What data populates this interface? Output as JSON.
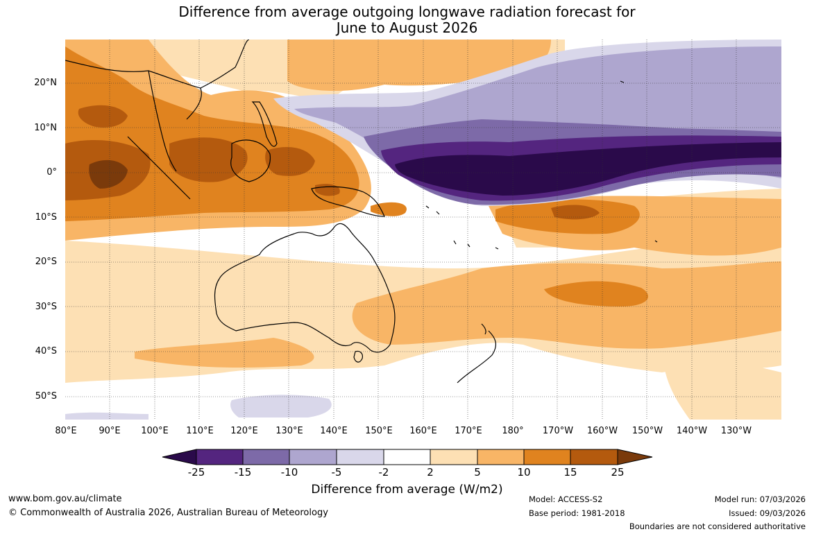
{
  "title": {
    "line1": "Difference from average outgoing longwave radiation forecast for",
    "line2": "June to August 2026"
  },
  "lat_labels": [
    "20°N",
    "10°N",
    "0°",
    "10°S",
    "20°S",
    "30°S",
    "40°S",
    "50°S"
  ],
  "lon_labels": [
    "80°E",
    "90°E",
    "100°E",
    "110°E",
    "120°E",
    "130°E",
    "140°E",
    "150°E",
    "160°E",
    "170°E",
    "180°",
    "170°W",
    "160°W",
    "150°W",
    "140°W",
    "130°W"
  ],
  "colorbar": {
    "ticks": [
      "-25",
      "-15",
      "-10",
      "-5",
      "-2",
      "2",
      "5",
      "10",
      "15",
      "25"
    ],
    "colors": {
      "lt_neg25": "#2a0a4a",
      "neg25_neg15": "#54257f",
      "neg15_neg10": "#7d6aa8",
      "neg10_neg5": "#aea6cf",
      "neg5_neg2": "#d9d7ea",
      "neg2_2": "#ffffff",
      "pos2_5": "#fde0b4",
      "pos5_10": "#f8b566",
      "pos10_15": "#e0831f",
      "pos15_25": "#b45a0e",
      "gt_25": "#7a3a0b"
    },
    "label": "Difference from average (W/m2)"
  },
  "footer": {
    "website": "www.bom.gov.au/climate",
    "copyright": "© Commonwealth of Australia 2026, Australian Bureau of Meteorology",
    "model": "Model: ACCESS-S2",
    "base_period": "Base period: 1981-2018",
    "model_run": "Model run: 07/03/2026",
    "issued": "Issued: 09/03/2026",
    "disclaimer": "Boundaries are not considered authoritative"
  }
}
